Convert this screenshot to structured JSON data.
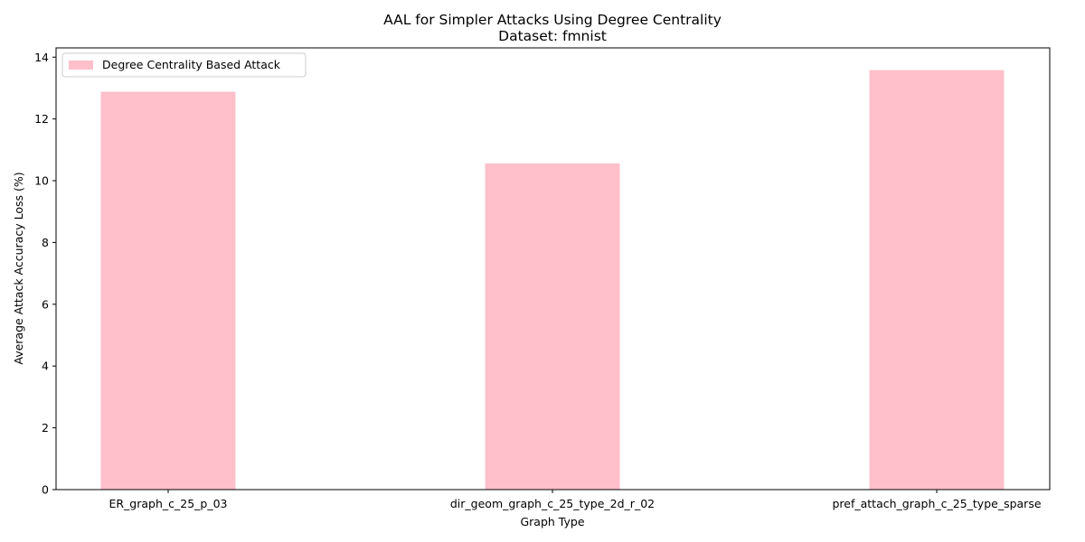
{
  "chart_data": {
    "type": "bar",
    "title": "AAL for Simpler Attacks Using Degree Centrality",
    "subtitle": "Dataset: fmnist",
    "xlabel": "Graph Type",
    "ylabel": "Average Attack Accuracy Loss (%)",
    "categories": [
      "ER_graph_c_25_p_03",
      "dir_geom_graph_c_25_type_2d_r_02",
      "pref_attach_graph_c_25_type_sparse"
    ],
    "series": [
      {
        "name": "Degree Centrality Based Attack",
        "color": "#ffc0cb",
        "values": [
          12.88,
          10.56,
          13.58
        ]
      }
    ],
    "ylim": [
      0,
      14.3
    ],
    "yticks": [
      0,
      2,
      4,
      6,
      8,
      10,
      12,
      14
    ],
    "grid": false,
    "legend_position": "upper-left"
  }
}
